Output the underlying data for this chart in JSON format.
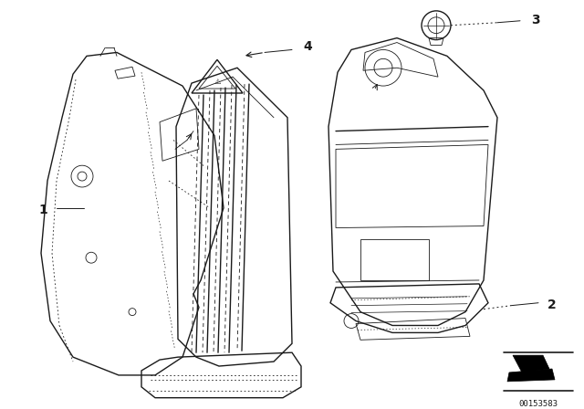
{
  "background_color": "#ffffff",
  "line_color": "#1a1a1a",
  "part_labels": [
    "1",
    "2",
    "3",
    "4"
  ],
  "part_id": "00153583",
  "label_fontsize": 10,
  "label_bold": true
}
